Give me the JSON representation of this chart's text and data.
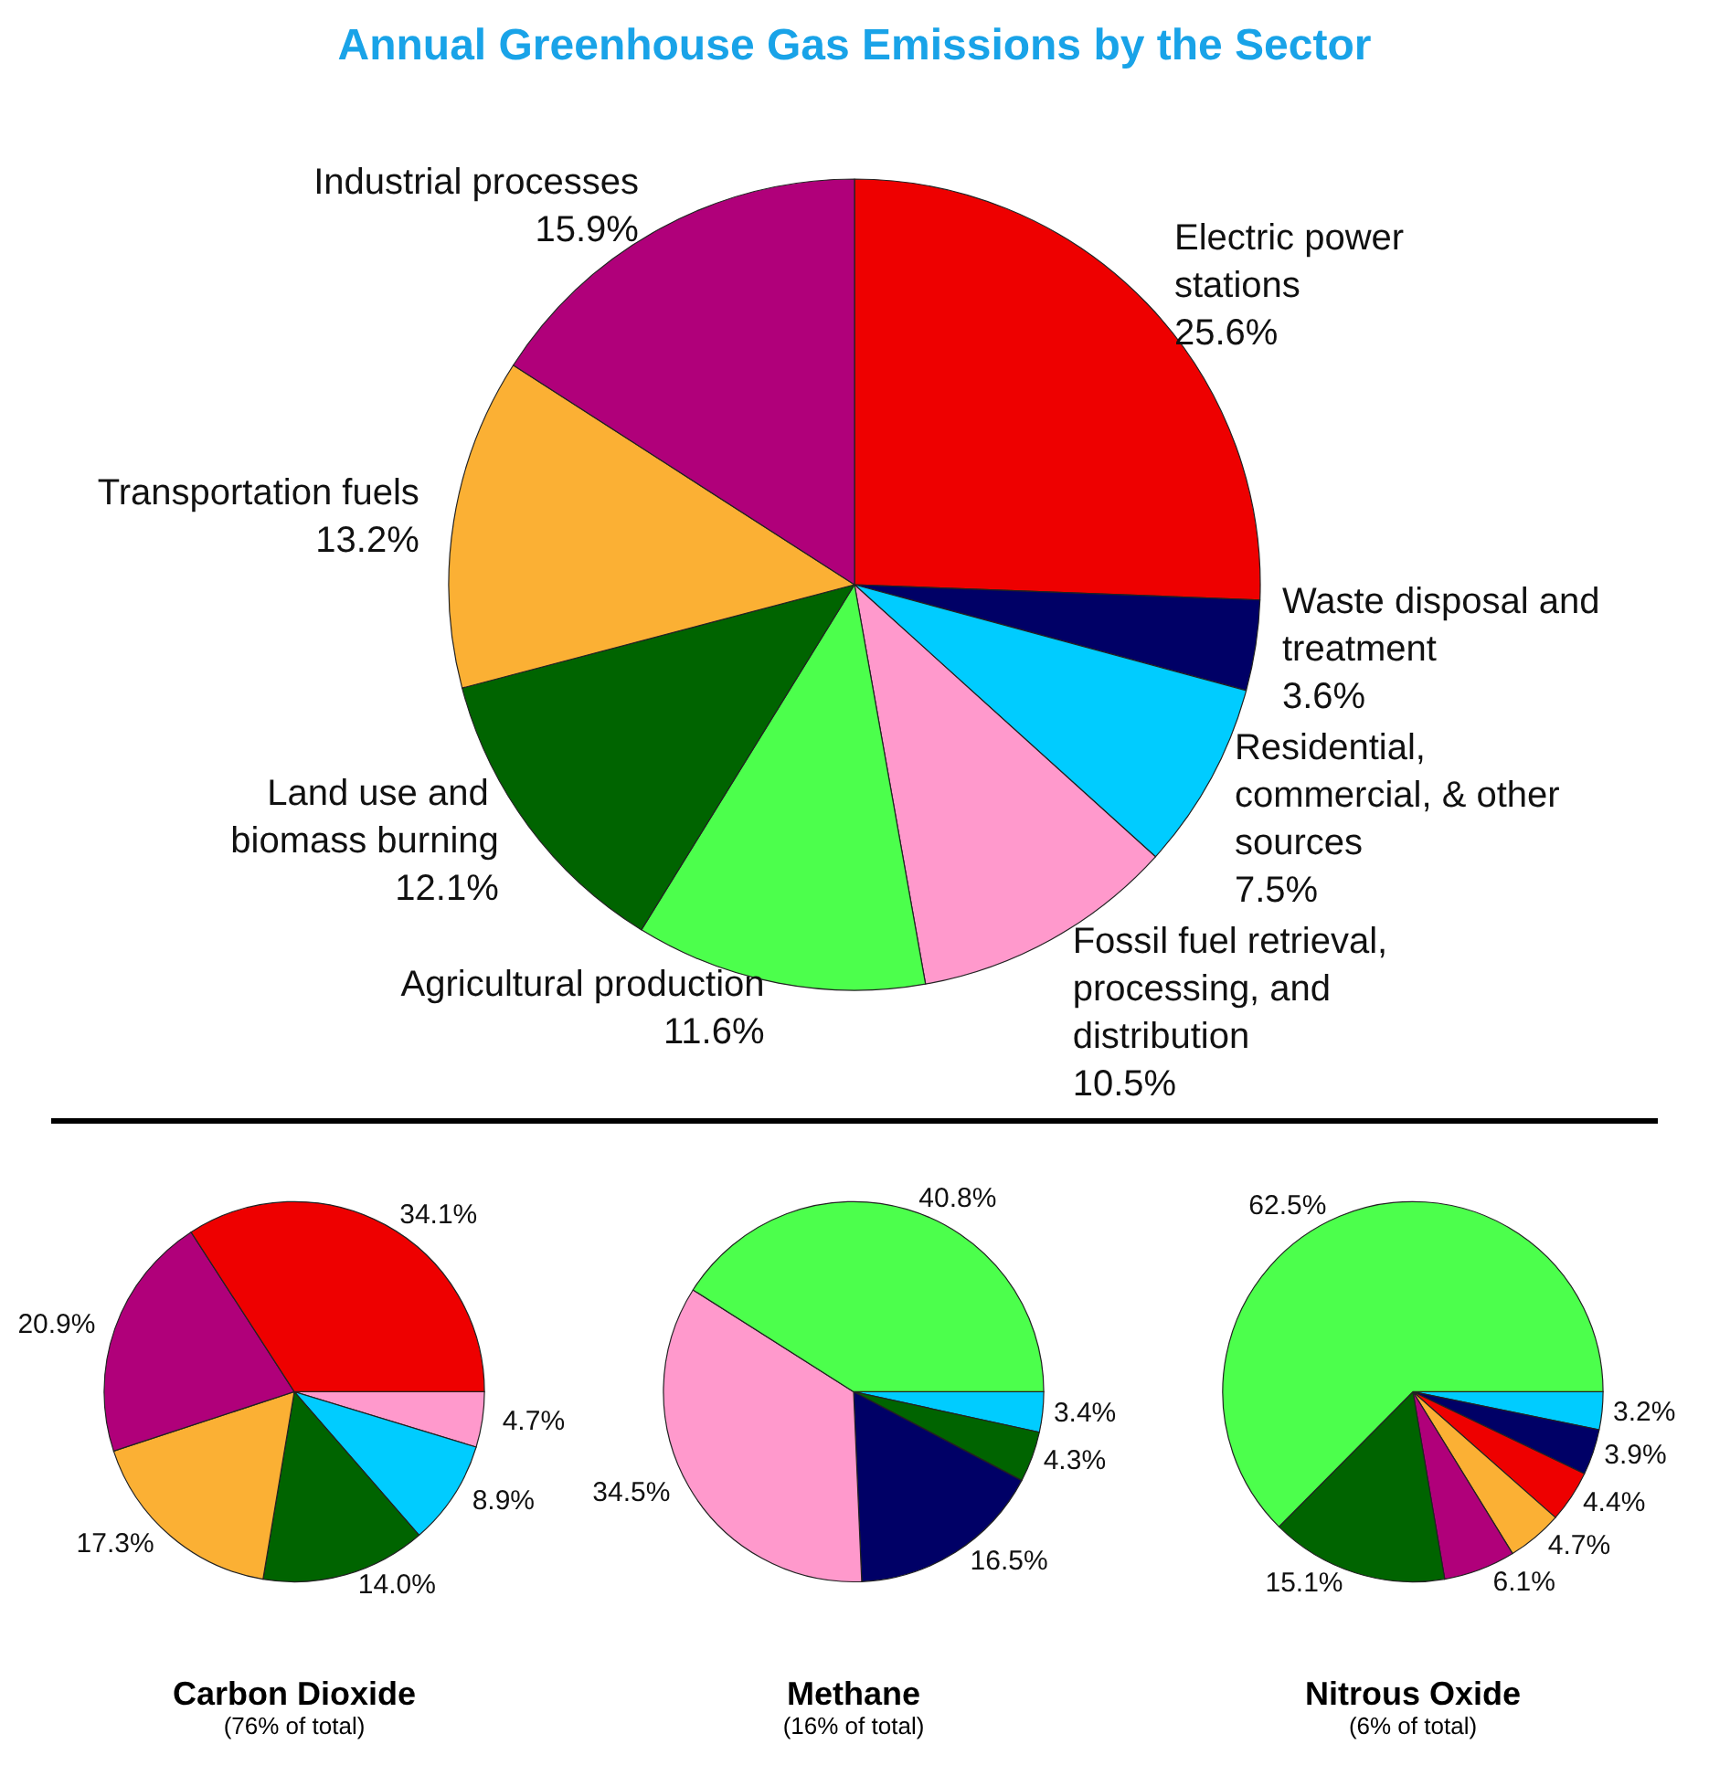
{
  "chart_data": [
    {
      "type": "pie",
      "title": "Annual Greenhouse Gas Emissions by the Sector",
      "categories": [
        "Electric power stations",
        "Waste disposal and treatment",
        "Residential, commercial, & other sources",
        "Fossil fuel retrieval, processing, and distribution",
        "Agricultural production",
        "Land use and biomass burning",
        "Transportation fuels",
        "Industrial processes"
      ],
      "values": [
        25.6,
        3.6,
        7.5,
        10.5,
        11.6,
        12.1,
        13.2,
        15.9
      ],
      "value_labels": [
        "25.6%",
        "3.6%",
        "7.5%",
        "10.5%",
        "11.6%",
        "12.1%",
        "13.2%",
        "15.9%"
      ],
      "colors": [
        "#ee0000",
        "#000066",
        "#00ccff",
        "#ff99cc",
        "#4cff4c",
        "#006400",
        "#fbb034",
        "#b0007a"
      ]
    },
    {
      "type": "pie",
      "title": "Carbon Dioxide",
      "subtitle": "(76% of total)",
      "categories": [
        null,
        null,
        null,
        null,
        null,
        null
      ],
      "values": [
        4.7,
        8.9,
        14.0,
        17.3,
        20.9,
        34.1
      ],
      "value_labels": [
        "4.7%",
        "8.9%",
        "14.0%",
        "17.3%",
        "20.9%",
        "34.1%"
      ],
      "colors": [
        "#ff99cc",
        "#00ccff",
        "#006400",
        "#fbb034",
        "#b0007a",
        "#ee0000"
      ]
    },
    {
      "type": "pie",
      "title": "Methane",
      "subtitle": "(16% of total)",
      "categories": [
        null,
        null,
        null,
        null,
        null,
        null
      ],
      "values": [
        null,
        3.4,
        4.3,
        16.5,
        34.5,
        40.8
      ],
      "value_labels": [
        null,
        "3.4%",
        "4.3%",
        "16.5%",
        "34.5%",
        "40.8%"
      ],
      "colors": [
        "#ee0000",
        "#00ccff",
        "#006400",
        "#000066",
        "#ff99cc",
        "#4cff4c"
      ]
    },
    {
      "type": "pie",
      "title": "Nitrous Oxide",
      "subtitle": "(6% of total)",
      "categories": [
        null,
        null,
        null,
        null,
        null,
        null,
        null
      ],
      "values": [
        3.2,
        3.9,
        4.4,
        4.7,
        6.1,
        15.1,
        62.5
      ],
      "value_labels": [
        "3.2%",
        "3.9%",
        "4.4%",
        "4.7%",
        "6.1%",
        "15.1%",
        "62.5%"
      ],
      "colors": [
        "#00ccff",
        "#000066",
        "#ee0000",
        "#fbb034",
        "#b0007a",
        "#006400",
        "#4cff4c"
      ]
    }
  ]
}
